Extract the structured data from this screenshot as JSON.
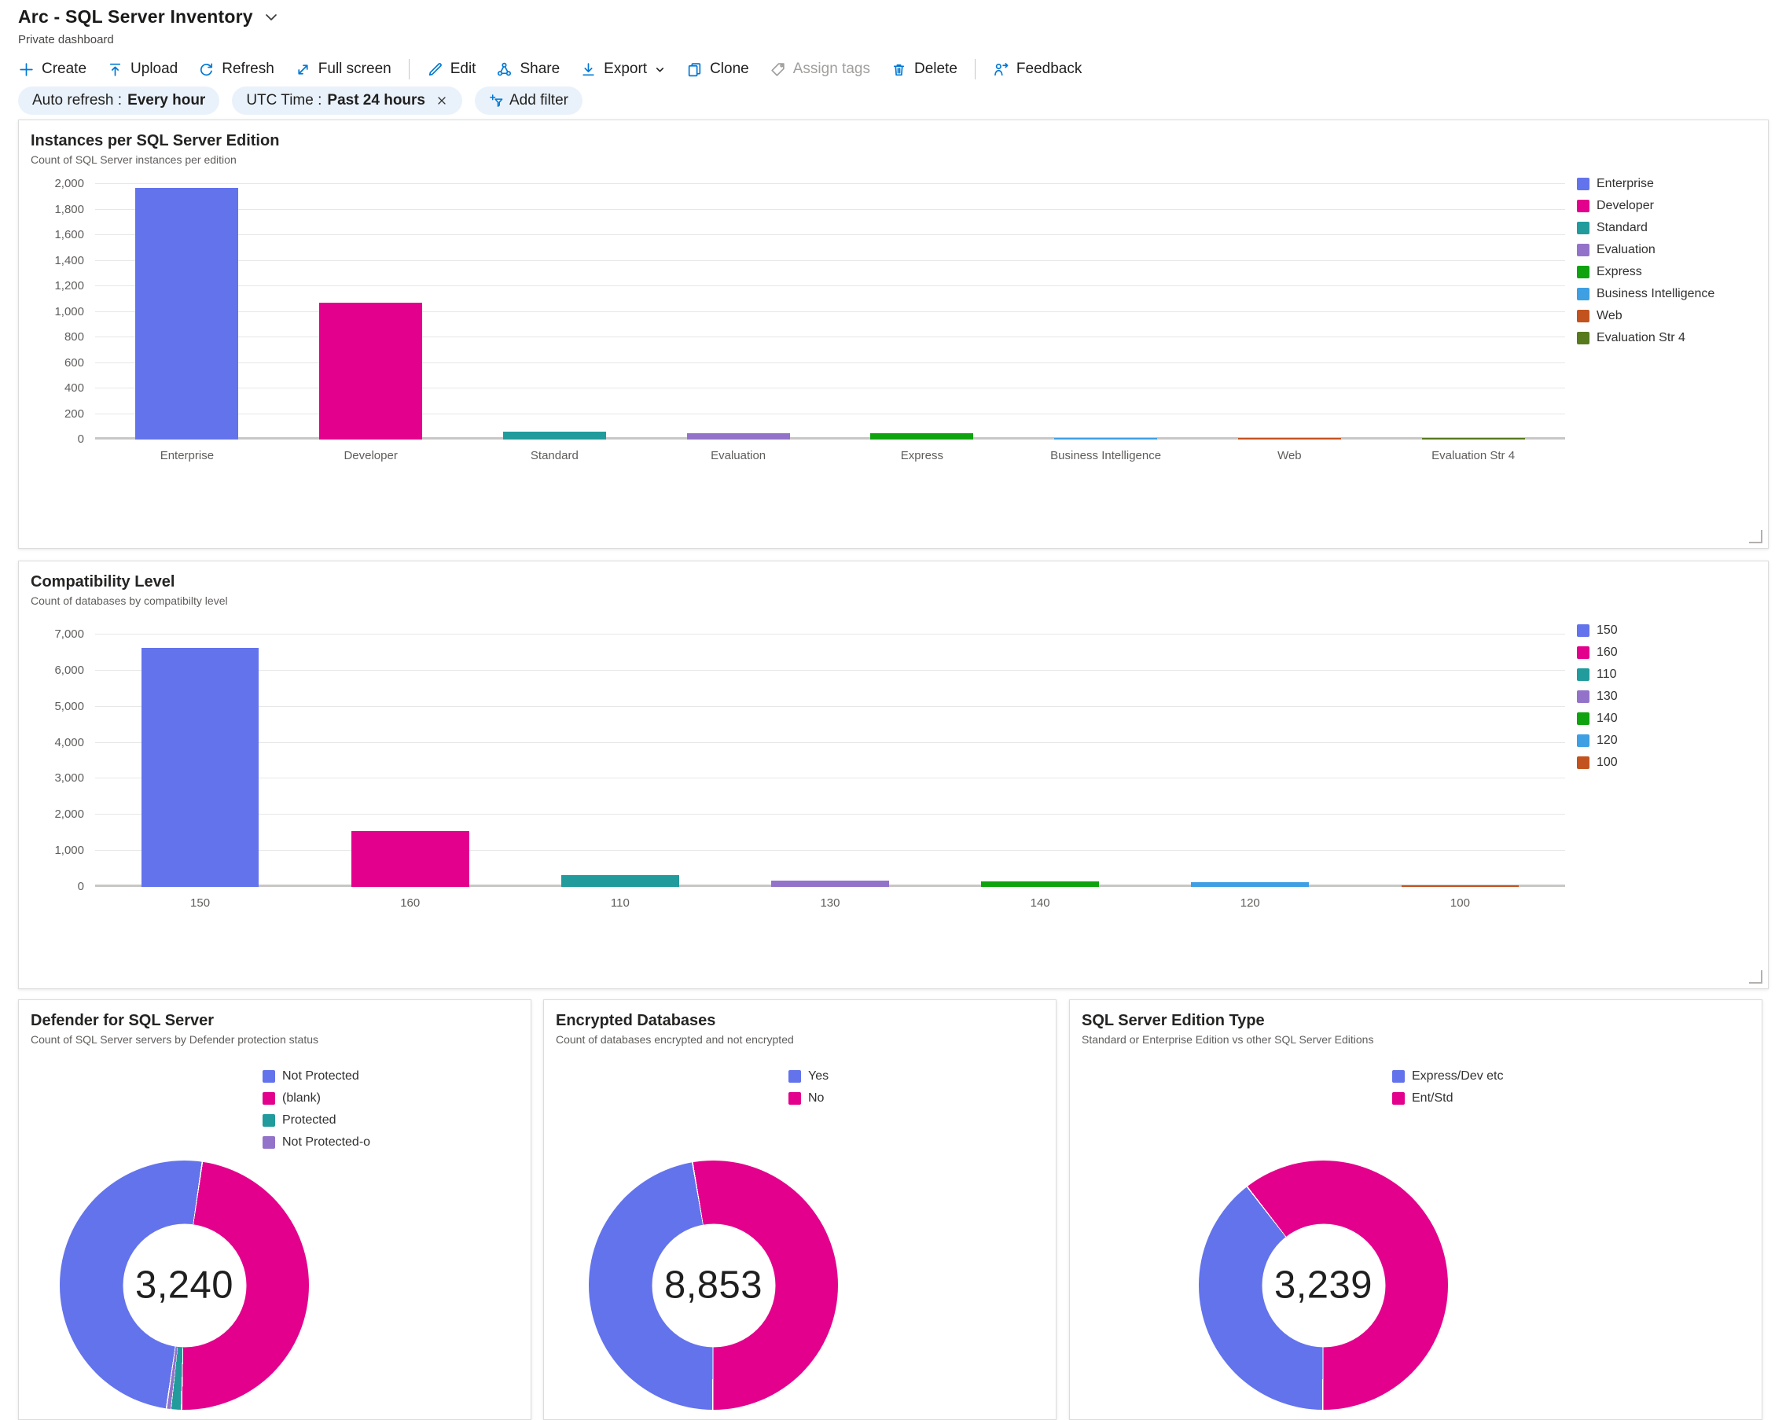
{
  "header": {
    "title": "Arc - SQL Server Inventory",
    "subtitle": "Private dashboard"
  },
  "toolbar": {
    "create": "Create",
    "upload": "Upload",
    "refresh": "Refresh",
    "full_screen": "Full screen",
    "edit": "Edit",
    "share": "Share",
    "export": "Export",
    "clone": "Clone",
    "assign_tags": "Assign tags",
    "delete": "Delete",
    "feedback": "Feedback"
  },
  "filters": {
    "auto_refresh_label": "Auto refresh :",
    "auto_refresh_value": "Every hour",
    "utc_label": "UTC Time :",
    "utc_value": "Past 24 hours",
    "add_filter": "Add filter"
  },
  "colors": {
    "accent": "#0078d4",
    "disabled": "#a19f9d",
    "blue": "#6373EC",
    "magenta": "#E3008C",
    "teal": "#219B9B",
    "purple": "#9373C9",
    "green": "#0FA30F",
    "light_blue": "#3E9FE3",
    "orange": "#C2531F",
    "olive": "#567A1D"
  },
  "chart_data": [
    {
      "type": "bar",
      "title": "Instances per SQL Server Edition",
      "subtitle": "Count of SQL Server instances per edition",
      "categories": [
        "Enterprise",
        "Developer",
        "Standard",
        "Evaluation",
        "Express",
        "Business Intelligence",
        "Web",
        "Evaluation Str 4"
      ],
      "values": [
        1970,
        1070,
        60,
        52,
        48,
        10,
        6,
        5
      ],
      "colors": [
        "#6373EC",
        "#E3008C",
        "#219B9B",
        "#9373C9",
        "#0FA30F",
        "#3E9FE3",
        "#C2531F",
        "#567A1D"
      ],
      "ylim": [
        0,
        2000
      ],
      "ytick_step": 200,
      "grid": true,
      "legend_position": "right"
    },
    {
      "type": "bar",
      "title": "Compatibility Level",
      "subtitle": "Count of databases by compatibilty level",
      "categories": [
        "150",
        "160",
        "110",
        "130",
        "140",
        "120",
        "100"
      ],
      "values": [
        6630,
        1540,
        330,
        185,
        150,
        130,
        40
      ],
      "colors": [
        "#6373EC",
        "#E3008C",
        "#219B9B",
        "#9373C9",
        "#0FA30F",
        "#3E9FE3",
        "#C2531F"
      ],
      "ylim": [
        0,
        7000
      ],
      "ytick_step": 1000,
      "grid": true,
      "legend_position": "right"
    },
    {
      "type": "donut",
      "title": "Defender for SQL Server",
      "subtitle": "Count of SQL Server servers by Defender protection status",
      "total_label": "3,240",
      "rotate_deg": 188,
      "legend_position": "right",
      "slices": [
        {
          "label": "Not Protected",
          "value": 1620,
          "color": "#6373EC"
        },
        {
          "label": "(blank)",
          "value": 1557,
          "color": "#E3008C"
        },
        {
          "label": "Protected",
          "value": 45,
          "color": "#219B9B"
        },
        {
          "label": "Not Protected-o",
          "value": 18,
          "color": "#9373C9"
        }
      ]
    },
    {
      "type": "donut",
      "title": "Encrypted Databases",
      "subtitle": "Count of databases encrypted and not encrypted",
      "total_label": "8,853",
      "rotate_deg": 180,
      "legend_position": "right",
      "slices": [
        {
          "label": "Yes",
          "value": 4181,
          "color": "#6373EC"
        },
        {
          "label": "No",
          "value": 4672,
          "color": "#E3008C"
        }
      ]
    },
    {
      "type": "donut",
      "title": "SQL Server Edition Type",
      "subtitle": "Standard or Enterprise Edition vs other SQL Server Editions",
      "total_label": "3,239",
      "rotate_deg": 180,
      "legend_position": "right",
      "slices": [
        {
          "label": "Express/Dev etc",
          "value": 1277,
          "color": "#6373EC"
        },
        {
          "label": "Ent/Std",
          "value": 1962,
          "color": "#E3008C"
        }
      ]
    }
  ]
}
